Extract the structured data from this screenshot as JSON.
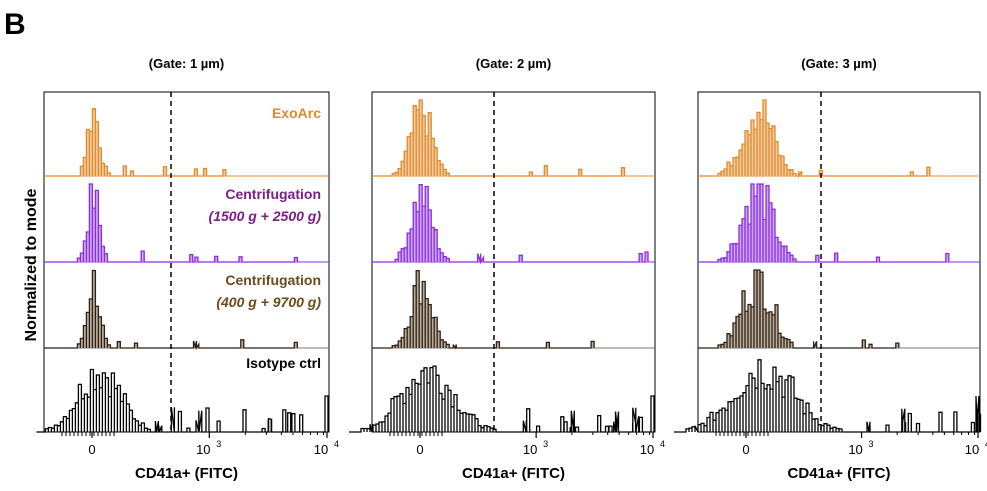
{
  "figure": {
    "panel_letter": "B",
    "y_axis_label": "Normalized to mode",
    "x_axis_label": "CD41a+ (FITC)",
    "x_ticks": [
      "0",
      "10^3",
      "10^4"
    ],
    "colors": {
      "exoarc": "#E08A2C",
      "exoarc_fill": "#F0C594",
      "centrifugation_1": "#8B2BE2",
      "centrifugation_1_fill": "#C9A0F5",
      "centrifugation_1_label": "#7A1F87",
      "centrifugation_2": "#2E2114",
      "centrifugation_2_fill": "#B2A493",
      "centrifugation_2_label": "#6B4A1E",
      "isotype": "#000000",
      "exoarc_label": "#E08A2C"
    }
  },
  "chart_data": [
    {
      "type": "histogram",
      "title": "(Gate: 1 µm)",
      "gate_line": "x ≈ 500 (dashed)",
      "xlabel": "CD41a+ (FITC)",
      "ylabel": "Normalized to mode",
      "x_scale": "biexponential",
      "series": [
        {
          "name": "ExoArc",
          "color": "#E08A2C",
          "filled": true,
          "peak_x": 0,
          "values": [
            0,
            0.02,
            0.08,
            0.2,
            0.5,
            0.78,
            1.0,
            0.7,
            0.45,
            0.25,
            0.12,
            0.05,
            0.02,
            0
          ]
        },
        {
          "name": "Centrifugation (1500 g + 2500 g)",
          "color": "#8B2BE2",
          "filled": true,
          "peak_x": 0,
          "values": [
            0,
            0.05,
            0.15,
            0.4,
            0.7,
            0.95,
            1.0,
            0.85,
            0.6,
            0.45,
            0.25,
            0.15,
            0.08,
            0.03,
            0
          ]
        },
        {
          "name": "Centrifugation (400 g + 9700 g)",
          "color": "#2E2114",
          "filled": true,
          "peak_x": 0,
          "values": [
            0,
            0.05,
            0.15,
            0.35,
            0.6,
            0.85,
            1.0,
            0.9,
            0.75,
            0.5,
            0.3,
            0.15,
            0.06,
            0.02,
            0
          ]
        },
        {
          "name": "Isotype ctrl",
          "color": "#000000",
          "filled": false,
          "peak_x": 0,
          "values": [
            0,
            0.2,
            0.45,
            0.6,
            0.5,
            0.7,
            0.8,
            0.9,
            0.75,
            0.65,
            0.5,
            0.35,
            0.2,
            0.1,
            0.05,
            0
          ]
        }
      ]
    },
    {
      "type": "histogram",
      "title": "(Gate: 2 µm)",
      "gate_line": "x ≈ 500 (dashed)",
      "xlabel": "CD41a+ (FITC)",
      "x_scale": "biexponential",
      "series": [
        {
          "name": "ExoArc",
          "color": "#E08A2C",
          "filled": true
        },
        {
          "name": "Centrifugation (1500 g + 2500 g)",
          "color": "#8B2BE2",
          "filled": true
        },
        {
          "name": "Centrifugation (400 g + 9700 g)",
          "color": "#2E2114",
          "filled": true
        },
        {
          "name": "Isotype ctrl",
          "color": "#000000",
          "filled": false
        }
      ]
    },
    {
      "type": "histogram",
      "title": "(Gate: 3 µm)",
      "gate_line": "x ≈ 500 (dashed)",
      "xlabel": "CD41a+ (FITC)",
      "x_scale": "biexponential",
      "series": [
        {
          "name": "ExoArc",
          "color": "#E08A2C",
          "filled": true
        },
        {
          "name": "Centrifugation (1500 g + 2500 g)",
          "color": "#8B2BE2",
          "filled": true
        },
        {
          "name": "Centrifugation (400 g + 9700 g)",
          "color": "#2E2114",
          "filled": true
        },
        {
          "name": "Isotype ctrl",
          "color": "#000000",
          "filled": false
        }
      ]
    }
  ],
  "labels": {
    "exoarc": "ExoArc",
    "centrifugation_1_line1": "Centrifugation",
    "centrifugation_1_line2": "(1500 g + 2500 g)",
    "centrifugation_2_line1": "Centrifugation",
    "centrifugation_2_line2": "(400 g + 9700 g)",
    "isotype": "Isotype ctrl"
  }
}
